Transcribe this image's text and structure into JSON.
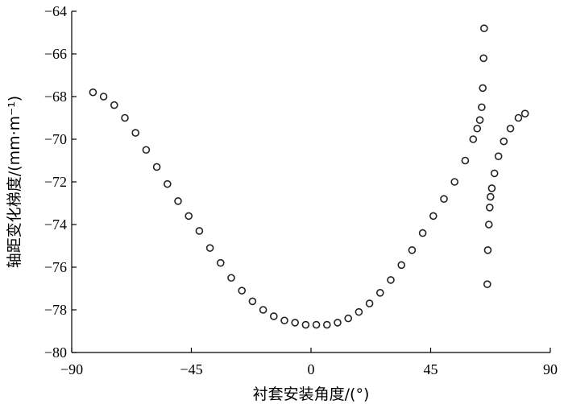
{
  "chart_data": {
    "type": "scatter",
    "title": "",
    "xlabel": "衬套安装角度/(°)",
    "ylabel": "轴距变化梯度/(mm·m⁻¹)",
    "xlim": [
      -90,
      90
    ],
    "ylim": [
      -80,
      -64
    ],
    "x_ticks": [
      -90,
      -45,
      0,
      45,
      90
    ],
    "y_ticks": [
      -80,
      -78,
      -76,
      -74,
      -72,
      -70,
      -68,
      -66,
      -64
    ],
    "x_tick_labels": [
      "−90",
      "−45",
      "0",
      "45",
      "90"
    ],
    "y_tick_labels": [
      "−80",
      "−78",
      "−76",
      "−74",
      "−72",
      "−70",
      "−68",
      "−66",
      "−64"
    ],
    "grid": false,
    "legend": "none",
    "marker_color": "#222222",
    "series": [
      {
        "points": [
          [
            -82,
            -67.8
          ],
          [
            -78,
            -68.0
          ],
          [
            -74,
            -68.4
          ],
          [
            -70,
            -69.0
          ],
          [
            -66,
            -69.7
          ],
          [
            -62,
            -70.5
          ],
          [
            -58,
            -71.3
          ],
          [
            -54,
            -72.1
          ],
          [
            -50,
            -72.9
          ],
          [
            -46,
            -73.6
          ],
          [
            -42,
            -74.3
          ],
          [
            -38,
            -75.1
          ],
          [
            -34,
            -75.8
          ],
          [
            -30,
            -76.5
          ],
          [
            -26,
            -77.1
          ],
          [
            -22,
            -77.6
          ],
          [
            -18,
            -78.0
          ],
          [
            -14,
            -78.3
          ],
          [
            -10,
            -78.5
          ],
          [
            -6,
            -78.6
          ],
          [
            -2,
            -78.7
          ],
          [
            2,
            -78.7
          ],
          [
            6,
            -78.7
          ],
          [
            10,
            -78.6
          ],
          [
            14,
            -78.4
          ],
          [
            18,
            -78.1
          ],
          [
            22,
            -77.7
          ],
          [
            26,
            -77.2
          ],
          [
            30,
            -76.6
          ],
          [
            34,
            -75.9
          ],
          [
            38,
            -75.2
          ],
          [
            42,
            -74.4
          ],
          [
            46,
            -73.6
          ],
          [
            50,
            -72.8
          ],
          [
            54,
            -72.0
          ],
          [
            58,
            -71.0
          ],
          [
            61,
            -70.0
          ],
          [
            62.5,
            -69.5
          ],
          [
            63.5,
            -69.1
          ],
          [
            64.2,
            -68.5
          ],
          [
            64.6,
            -67.6
          ],
          [
            64.9,
            -66.2
          ],
          [
            65.1,
            -64.8
          ],
          [
            66.3,
            -76.8
          ],
          [
            66.5,
            -75.2
          ],
          [
            66.9,
            -74.0
          ],
          [
            67.2,
            -73.2
          ],
          [
            67.5,
            -72.7
          ],
          [
            68.0,
            -72.3
          ],
          [
            69.0,
            -71.6
          ],
          [
            70.5,
            -70.8
          ],
          [
            72.5,
            -70.1
          ],
          [
            75,
            -69.5
          ],
          [
            78,
            -69.0
          ],
          [
            80.5,
            -68.8
          ]
        ]
      }
    ]
  }
}
